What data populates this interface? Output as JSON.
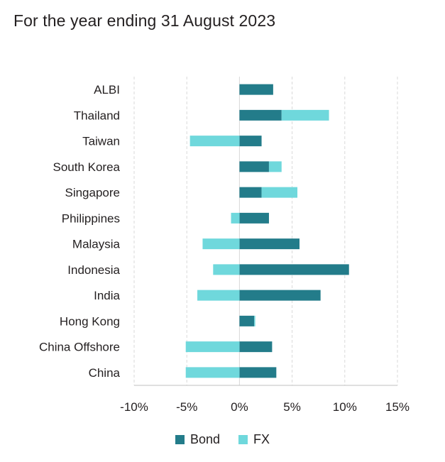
{
  "header": {
    "title": "For the year ending 31 August 2023"
  },
  "colors": {
    "bond": "#237c8a",
    "fx": "#6fd8dc",
    "grid": "#d9d9d9",
    "axis": "#bfbfbf"
  },
  "chart_data": {
    "type": "bar",
    "orientation": "horizontal",
    "stacked": true,
    "categories": [
      "ALBI",
      "Thailand",
      "Taiwan",
      "South Korea",
      "Singapore",
      "Philippines",
      "Malaysia",
      "Indonesia",
      "India",
      "Hong Kong",
      "China Offshore",
      "China"
    ],
    "series": [
      {
        "name": "Bond",
        "values": [
          3.2,
          4.0,
          2.1,
          2.8,
          2.1,
          2.8,
          5.7,
          10.4,
          7.7,
          1.4,
          3.1,
          3.5
        ]
      },
      {
        "name": "FX",
        "values": [
          0.0,
          4.5,
          -4.7,
          1.2,
          3.4,
          -0.8,
          -3.5,
          -2.5,
          -4.0,
          0.1,
          -5.1,
          -5.1
        ]
      }
    ],
    "xlim": [
      -10,
      15
    ],
    "xticks": [
      -10,
      -5,
      0,
      5,
      10,
      15
    ],
    "xtick_labels": [
      "-10%",
      "-5%",
      "0%",
      "5%",
      "10%",
      "15%"
    ],
    "grid": "vertical",
    "legend_position": "bottom-center"
  }
}
